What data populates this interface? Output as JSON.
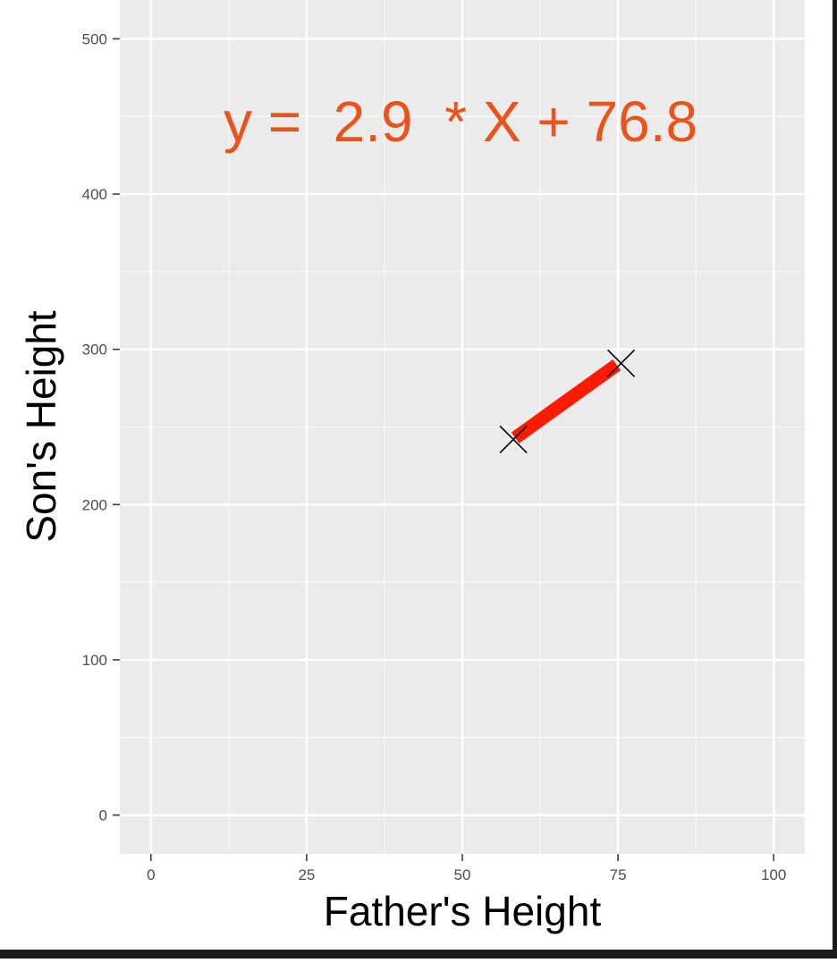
{
  "chart_data": {
    "type": "line",
    "xlabel": "Father's Height",
    "ylabel": "Son's Height",
    "xlim": [
      -5,
      105
    ],
    "ylim": [
      -25,
      525
    ],
    "x_ticks": [
      0,
      25,
      50,
      75,
      100
    ],
    "y_ticks": [
      0,
      100,
      200,
      300,
      400,
      500
    ],
    "grid": true,
    "annotation": {
      "text": "y =  2.9  * X + 76.8",
      "color": "#e8541c"
    },
    "series": [
      {
        "type": "line",
        "x": [
          58.5,
          74.8
        ],
        "y": [
          243,
          290
        ],
        "color": "#ff1a00"
      },
      {
        "type": "scatter",
        "marker": "x",
        "x": [
          58.2,
          75.5
        ],
        "y": [
          242,
          291
        ],
        "color": "#000000"
      }
    ],
    "colors": {
      "panel": "#ebebeb",
      "grid_major": "#ffffff",
      "tick_label": "#4d4d4d",
      "axis_title": "#000000"
    }
  }
}
